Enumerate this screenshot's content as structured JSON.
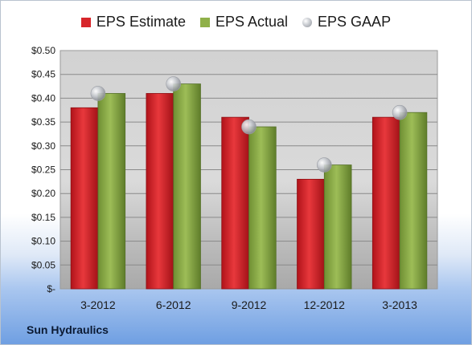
{
  "chart_data": {
    "type": "bar",
    "categories": [
      "3-2012",
      "6-2012",
      "9-2012",
      "12-2012",
      "3-2013"
    ],
    "series": [
      {
        "name": "EPS Estimate",
        "kind": "bar",
        "values": [
          0.38,
          0.41,
          0.36,
          0.23,
          0.36
        ],
        "color": "#d7262b"
      },
      {
        "name": "EPS Actual",
        "kind": "bar",
        "values": [
          0.41,
          0.43,
          0.34,
          0.26,
          0.37
        ],
        "color": "#8fb049"
      },
      {
        "name": "EPS GAAP",
        "kind": "marker",
        "values": [
          0.41,
          0.43,
          0.34,
          0.26,
          0.37
        ],
        "color": "#b9bcc2"
      }
    ],
    "ylim": [
      0,
      0.5
    ],
    "yticks": [
      0,
      0.05,
      0.1,
      0.15,
      0.2,
      0.25,
      0.3,
      0.35,
      0.4,
      0.45,
      0.5
    ],
    "ytick_labels": [
      "$-",
      "$0.05",
      "$0.10",
      "$0.15",
      "$0.20",
      "$0.25",
      "$0.30",
      "$0.35",
      "$0.40",
      "$0.45",
      "$0.50"
    ],
    "grid": true,
    "legend_position": "top",
    "footer_label": "Sun Hydraulics"
  }
}
